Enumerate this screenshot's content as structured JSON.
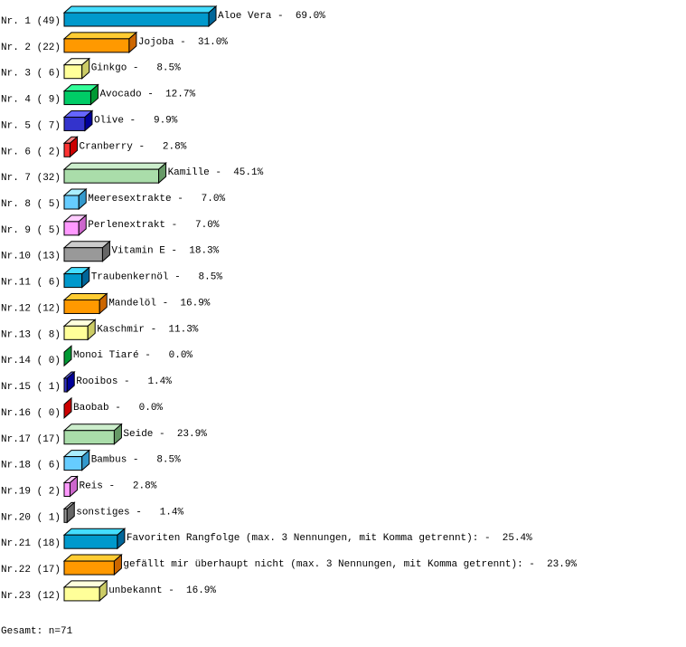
{
  "chart_data": {
    "type": "bar",
    "orientation": "horizontal",
    "style": "3d",
    "categories": [
      "Aloe Vera",
      "Jojoba",
      "Ginkgo",
      "Avocado",
      "Olive",
      "Cranberry",
      "Kamille",
      "Meeresextrakte",
      "Perlenextrakt",
      "Vitamin E",
      "Traubenkernöl",
      "Mandelöl",
      "Kaschmir",
      "Monoi Tiaré",
      "Rooibos",
      "Baobab",
      "Seide",
      "Bambus",
      "Reis",
      "sonstiges",
      "Favoriten Rangfolge (max. 3 Nennungen, mit Komma getrennt):",
      "gefällt mir überhaupt nicht (max. 3 Nennungen, mit Komma getrennt):",
      "unbekannt"
    ],
    "counts": [
      49,
      22,
      6,
      9,
      7,
      2,
      32,
      5,
      5,
      13,
      6,
      12,
      8,
      0,
      1,
      0,
      17,
      6,
      2,
      1,
      18,
      17,
      12
    ],
    "values": [
      69.0,
      31.0,
      8.5,
      12.7,
      9.9,
      2.8,
      45.1,
      7.0,
      7.0,
      18.3,
      8.5,
      16.9,
      11.3,
      0.0,
      1.4,
      0.0,
      23.9,
      8.5,
      2.8,
      1.4,
      25.4,
      23.9,
      16.9
    ],
    "row_labels": [
      "Nr. 1 (49)",
      "Nr. 2 (22)",
      "Nr. 3 ( 6)",
      "Nr. 4 ( 9)",
      "Nr. 5 ( 7)",
      "Nr. 6 ( 2)",
      "Nr. 7 (32)",
      "Nr. 8 ( 5)",
      "Nr. 9 ( 5)",
      "Nr.10 (13)",
      "Nr.11 ( 6)",
      "Nr.12 (12)",
      "Nr.13 ( 8)",
      "Nr.14 ( 0)",
      "Nr.15 ( 1)",
      "Nr.16 ( 0)",
      "Nr.17 (17)",
      "Nr.18 ( 6)",
      "Nr.19 ( 2)",
      "Nr.20 ( 1)",
      "Nr.21 (18)",
      "Nr.22 (17)",
      "Nr.23 (12)"
    ],
    "unit": "%",
    "palette": [
      {
        "front": "#0099cc",
        "top": "#44ddff",
        "side": "#006699"
      },
      {
        "front": "#ff9900",
        "top": "#ffcc33",
        "side": "#cc6600"
      },
      {
        "front": "#ffff99",
        "top": "#ffffdd",
        "side": "#cccc66"
      },
      {
        "front": "#00cc66",
        "top": "#33ff99",
        "side": "#009933"
      },
      {
        "front": "#3333cc",
        "top": "#6666ff",
        "side": "#000099"
      },
      {
        "front": "#ff3333",
        "top": "#ff8888",
        "side": "#cc0000"
      },
      {
        "front": "#aaddaa",
        "top": "#cceecc",
        "side": "#669966"
      },
      {
        "front": "#66ccff",
        "top": "#aaeeff",
        "side": "#3399cc"
      },
      {
        "front": "#ff99ff",
        "top": "#ffccff",
        "side": "#cc66cc"
      },
      {
        "front": "#999999",
        "top": "#cccccc",
        "side": "#666666"
      }
    ]
  },
  "footer": "Gesamt: n=71"
}
